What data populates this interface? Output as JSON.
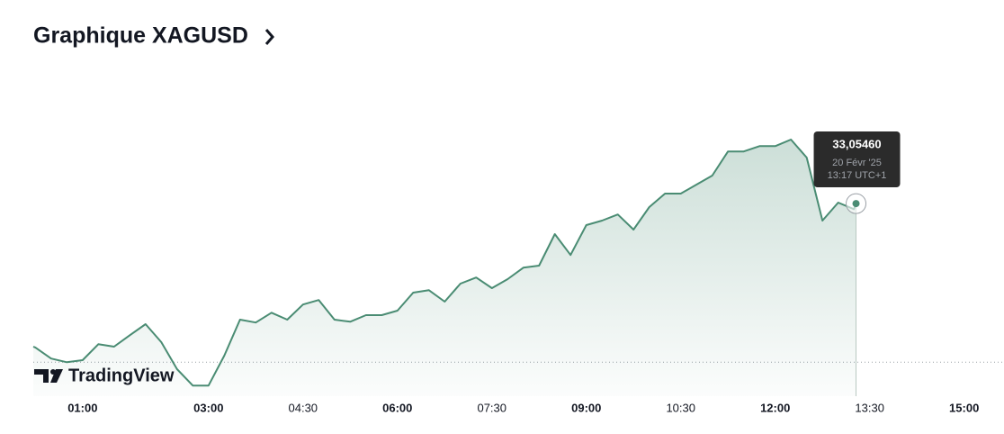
{
  "chart_data": {
    "type": "area",
    "title": "Graphique XAGUSD",
    "brand": "TradingView",
    "color": "#4a8c73",
    "x": [
      "00:13",
      "00:15",
      "00:30",
      "00:45",
      "01:00",
      "01:15",
      "01:30",
      "01:45",
      "02:00",
      "02:15",
      "02:30",
      "02:45",
      "03:00",
      "03:15",
      "03:30",
      "03:45",
      "04:00",
      "04:15",
      "04:30",
      "04:45",
      "05:00",
      "05:15",
      "05:30",
      "05:45",
      "06:00",
      "06:15",
      "06:30",
      "06:45",
      "07:00",
      "07:15",
      "07:30",
      "07:45",
      "08:00",
      "08:15",
      "08:30",
      "08:45",
      "09:00",
      "09:15",
      "09:30",
      "09:45",
      "10:00",
      "10:15",
      "10:30",
      "10:45",
      "11:00",
      "11:15",
      "11:30",
      "11:45",
      "12:00",
      "12:15",
      "12:30",
      "12:45",
      "13:00",
      "13:15",
      "13:17"
    ],
    "values": [
      32.705,
      32.703,
      32.676,
      32.667,
      32.672,
      32.711,
      32.705,
      32.733,
      32.76,
      32.716,
      32.65,
      32.61,
      32.61,
      32.683,
      32.771,
      32.764,
      32.788,
      32.771,
      32.808,
      32.819,
      32.771,
      32.766,
      32.782,
      32.782,
      32.793,
      32.837,
      32.843,
      32.815,
      32.859,
      32.874,
      32.848,
      32.87,
      32.898,
      32.903,
      32.98,
      32.929,
      33.002,
      33.013,
      33.028,
      32.991,
      33.046,
      33.079,
      33.079,
      33.101,
      33.123,
      33.182,
      33.182,
      33.195,
      33.195,
      33.211,
      33.167,
      33.013,
      33.057,
      33.041,
      33.0546
    ],
    "xlim": [
      "00:13",
      "15:38"
    ],
    "xticks": [
      "01:00",
      "03:00",
      "04:30",
      "06:00",
      "07:30",
      "09:00",
      "10:30",
      "12:00",
      "13:30",
      "15:00"
    ],
    "ylim": [
      32.584,
      33.332
    ],
    "baseline": 32.667,
    "tooltip": {
      "value": 33.0546,
      "label": "33,05460",
      "date": "20 Févr '25",
      "time": "13:17 UTC+1"
    }
  }
}
